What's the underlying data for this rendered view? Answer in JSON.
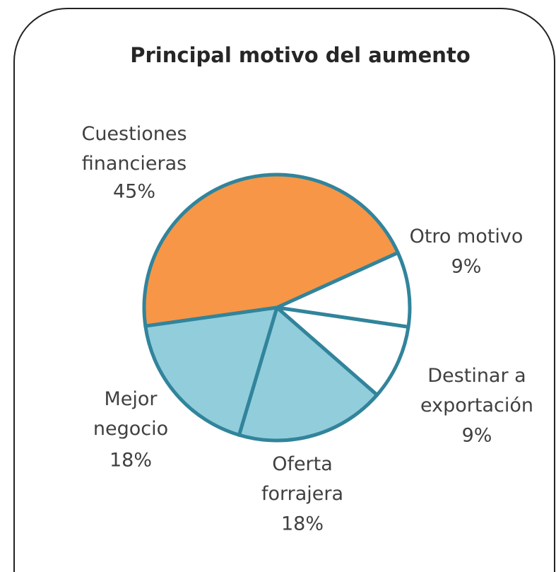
{
  "chart_data": {
    "type": "pie",
    "title": "Principal motivo del aumento",
    "categories": [
      "Cuestiones\nfinancieras",
      "Otro motivo",
      "Destinar a\nexportación",
      "Oferta\nforrajera",
      "Mejor\nnegocio"
    ],
    "values": [
      45,
      9,
      9,
      18,
      18
    ],
    "value_labels": [
      "45%",
      "9%",
      "9%",
      "18%",
      "18%"
    ],
    "colors": [
      "#F79646",
      "#FFFFFF",
      "#FFFFFF",
      "#92CDDC",
      "#92CDDC"
    ],
    "edge_color": "#31849B"
  }
}
